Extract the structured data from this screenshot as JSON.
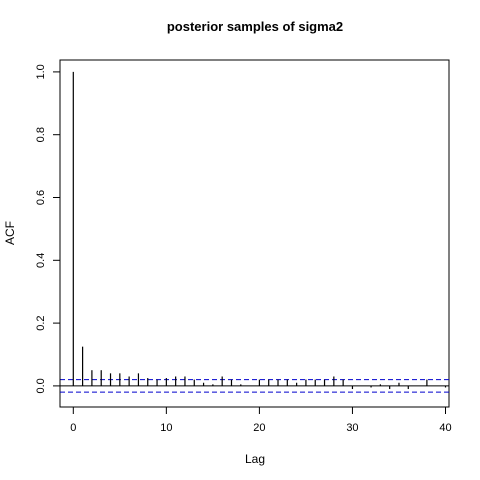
{
  "chart_data": {
    "type": "bar",
    "title": "posterior samples of sigma2",
    "xlabel": "Lag",
    "ylabel": "ACF",
    "xlim": [
      0,
      40
    ],
    "ylim": [
      -0.07,
      1.0
    ],
    "xticks": [
      0,
      10,
      20,
      30,
      40
    ],
    "yticks": [
      0.0,
      0.2,
      0.4,
      0.6,
      0.8,
      1.0
    ],
    "xtick_labels": [
      "0",
      "10",
      "20",
      "30",
      "40"
    ],
    "ytick_labels": [
      "0.0",
      "0.2",
      "0.4",
      "0.6",
      "0.8",
      "1.0"
    ],
    "confidence_bound": 0.02,
    "lags": [
      0,
      1,
      2,
      3,
      4,
      5,
      6,
      7,
      8,
      9,
      10,
      11,
      12,
      13,
      14,
      15,
      16,
      17,
      18,
      19,
      20,
      21,
      22,
      23,
      24,
      25,
      26,
      27,
      28,
      29,
      30,
      31,
      32,
      33,
      34,
      35,
      36,
      37,
      38,
      39,
      40
    ],
    "acf": [
      1.0,
      0.125,
      0.05,
      0.05,
      0.04,
      0.04,
      0.03,
      0.04,
      0.025,
      0.02,
      0.025,
      0.03,
      0.03,
      0.02,
      0.01,
      0.005,
      0.03,
      0.02,
      0.005,
      0.0,
      0.02,
      0.02,
      0.02,
      0.02,
      0.01,
      0.02,
      0.02,
      0.02,
      0.03,
      0.02,
      -0.01,
      0.0,
      -0.005,
      0.005,
      -0.01,
      0.01,
      -0.01,
      0.0,
      0.02,
      0.0,
      -0.005
    ],
    "colors": {
      "bars": "#000000",
      "zero_line": "#000000",
      "confidence_lines": "#0000cd"
    },
    "grid": false,
    "legend": "none"
  }
}
